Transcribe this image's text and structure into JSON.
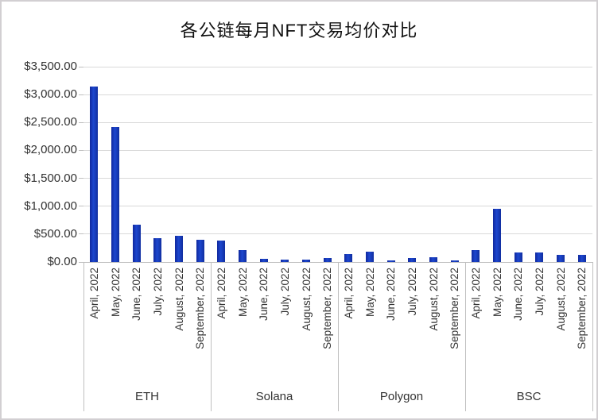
{
  "title": "各公链每月NFT交易均价对比",
  "chart_data": {
    "type": "bar",
    "title": "各公链每月NFT交易均价对比",
    "groups": [
      "ETH",
      "Solana",
      "Polygon",
      "BSC"
    ],
    "categories": [
      "April, 2022",
      "May, 2022",
      "June, 2022",
      "July, 2022",
      "August, 2022",
      "September, 2022"
    ],
    "series": [
      {
        "name": "ETH",
        "values": [
          3150,
          2420,
          675,
          430,
          465,
          405
        ]
      },
      {
        "name": "Solana",
        "values": [
          385,
          210,
          60,
          45,
          45,
          70
        ]
      },
      {
        "name": "Polygon",
        "values": [
          145,
          185,
          30,
          70,
          85,
          30
        ]
      },
      {
        "name": "BSC",
        "values": [
          215,
          950,
          175,
          175,
          130,
          135
        ]
      }
    ],
    "ylim": [
      0,
      3500
    ],
    "ytick_step": 500,
    "ytick_labels": [
      "$0.00",
      "$500.00",
      "$1,000.00",
      "$1,500.00",
      "$2,000.00",
      "$2,500.00",
      "$3,000.00",
      "$3,500.00"
    ],
    "xlabel": "",
    "ylabel": "",
    "grid": "horizontal",
    "legend": "none",
    "bar_color": "#1539bd",
    "gridline_color": "#d9d9d9",
    "axis_color": "#bfbfbf",
    "text_color": "#333333"
  }
}
